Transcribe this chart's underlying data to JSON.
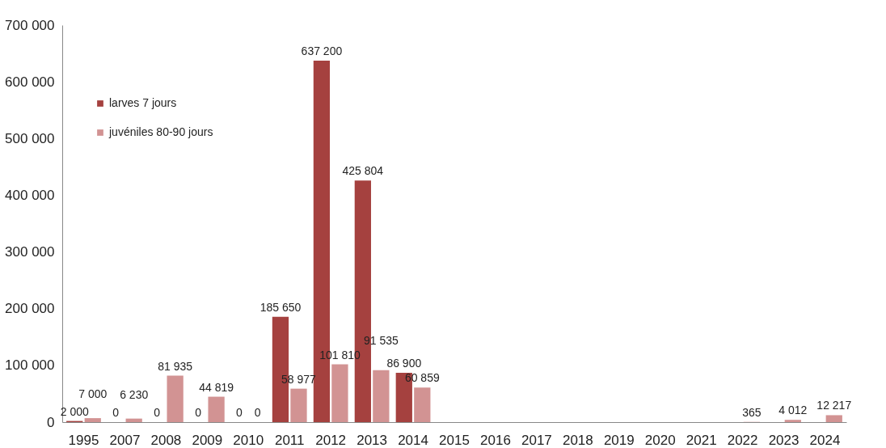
{
  "chart_data": {
    "type": "bar",
    "categories": [
      "1995",
      "2007",
      "2008",
      "2009",
      "2010",
      "2011",
      "2012",
      "2013",
      "2014",
      "2015",
      "2016",
      "2017",
      "2018",
      "2019",
      "2020",
      "2021",
      "2022",
      "2023",
      "2024"
    ],
    "series": [
      {
        "name": "larves 7 jours",
        "color": "#a5413f",
        "values": [
          2000,
          0,
          0,
          0,
          0,
          185650,
          637200,
          425804,
          86900,
          null,
          null,
          null,
          null,
          null,
          null,
          null,
          null,
          null,
          null
        ],
        "value_labels": [
          "2 000",
          "0",
          "0",
          "0",
          "0",
          "185 650",
          "637 200",
          "425 804",
          "86 900",
          null,
          null,
          null,
          null,
          null,
          null,
          null,
          null,
          null,
          null
        ]
      },
      {
        "name": "juvéniles 80-90 jours",
        "color": "#d29393",
        "values": [
          7000,
          6230,
          81935,
          44819,
          0,
          58977,
          101810,
          91535,
          60859,
          null,
          null,
          null,
          null,
          null,
          null,
          null,
          365,
          4012,
          12217
        ],
        "value_labels": [
          "7 000",
          "6 230",
          "81 935",
          "44 819",
          "0",
          "58 977",
          "101 810",
          "91 535",
          "60 859",
          null,
          null,
          null,
          null,
          null,
          null,
          null,
          "365",
          "4 012",
          "12 217"
        ]
      }
    ],
    "ylim": [
      0,
      700000
    ],
    "yticks": [
      {
        "value": 0,
        "label": "0"
      },
      {
        "value": 100000,
        "label": "100 000"
      },
      {
        "value": 200000,
        "label": "200 000"
      },
      {
        "value": 300000,
        "label": "300 000"
      },
      {
        "value": 400000,
        "label": "400 000"
      },
      {
        "value": 500000,
        "label": "500 000"
      },
      {
        "value": 600000,
        "label": "600 000"
      },
      {
        "value": 700000,
        "label": "700 000"
      }
    ],
    "grid": false,
    "legend": "top left"
  }
}
